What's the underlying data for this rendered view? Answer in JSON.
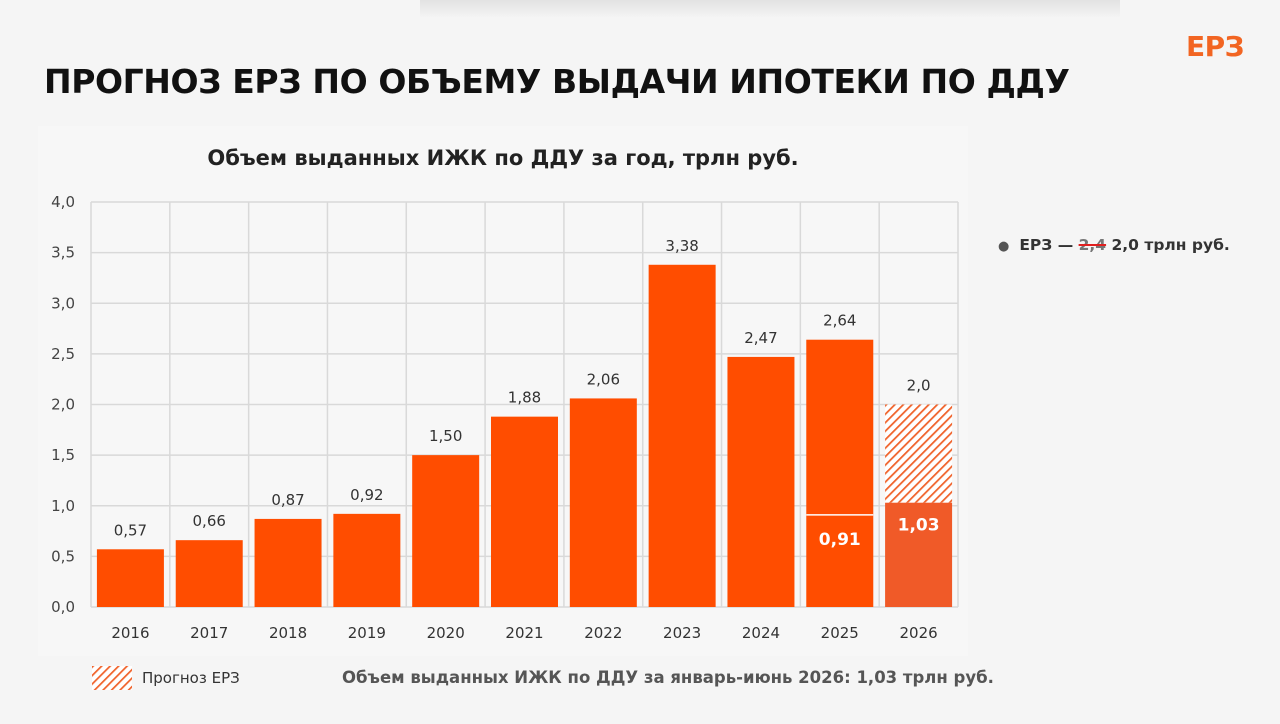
{
  "header": {
    "logo_text": "ЕРЗ",
    "title": "ПРОГНОЗ ЕРЗ ПО ОБЪЕМУ ВЫДАЧИ ИПОТЕКИ ПО ДДУ"
  },
  "side_note": {
    "prefix": "ЕРЗ —",
    "struck_value": "2,4",
    "new_value": "2,0 трлн руб."
  },
  "legend": {
    "forecast_label": "Прогноз ЕРЗ"
  },
  "footnote": "Объем выданных ИЖК по ДДУ за январь-июнь 2026: 1,03 трлн руб.",
  "colors": {
    "bar": "#ff4d00",
    "forecast_bar_base": "#f05a28",
    "hatch_line": "#f0622a",
    "hatch_bg": "#ffffff",
    "logo": "#f26522",
    "grid": "#d9d9d9"
  },
  "chart_data": {
    "type": "bar",
    "title": "Объем выданных ИЖК по ДДУ за год, трлн руб.",
    "categories": [
      "2016",
      "2017",
      "2018",
      "2019",
      "2020",
      "2021",
      "2022",
      "2023",
      "2024",
      "2025",
      "2026"
    ],
    "values": [
      0.57,
      0.66,
      0.87,
      0.92,
      1.5,
      1.88,
      2.06,
      3.38,
      2.47,
      2.64,
      2.0
    ],
    "value_labels": [
      "0,57",
      "0,66",
      "0,87",
      "0,92",
      "1,50",
      "1,88",
      "2,06",
      "3,38",
      "2,47",
      "2,64",
      "2,0"
    ],
    "partial_values": [
      {
        "category": "2025",
        "value": 0.91,
        "label": "0,91"
      },
      {
        "category": "2026",
        "value": 1.03,
        "label": "1,03"
      }
    ],
    "forecast_category": "2026",
    "ylim": [
      0,
      4.0
    ],
    "yticks": [
      "0,0",
      "0,5",
      "1,0",
      "1,5",
      "2,0",
      "2,5",
      "3,0",
      "3,5",
      "4,0"
    ],
    "grid": true,
    "legend": "bottom-left"
  }
}
